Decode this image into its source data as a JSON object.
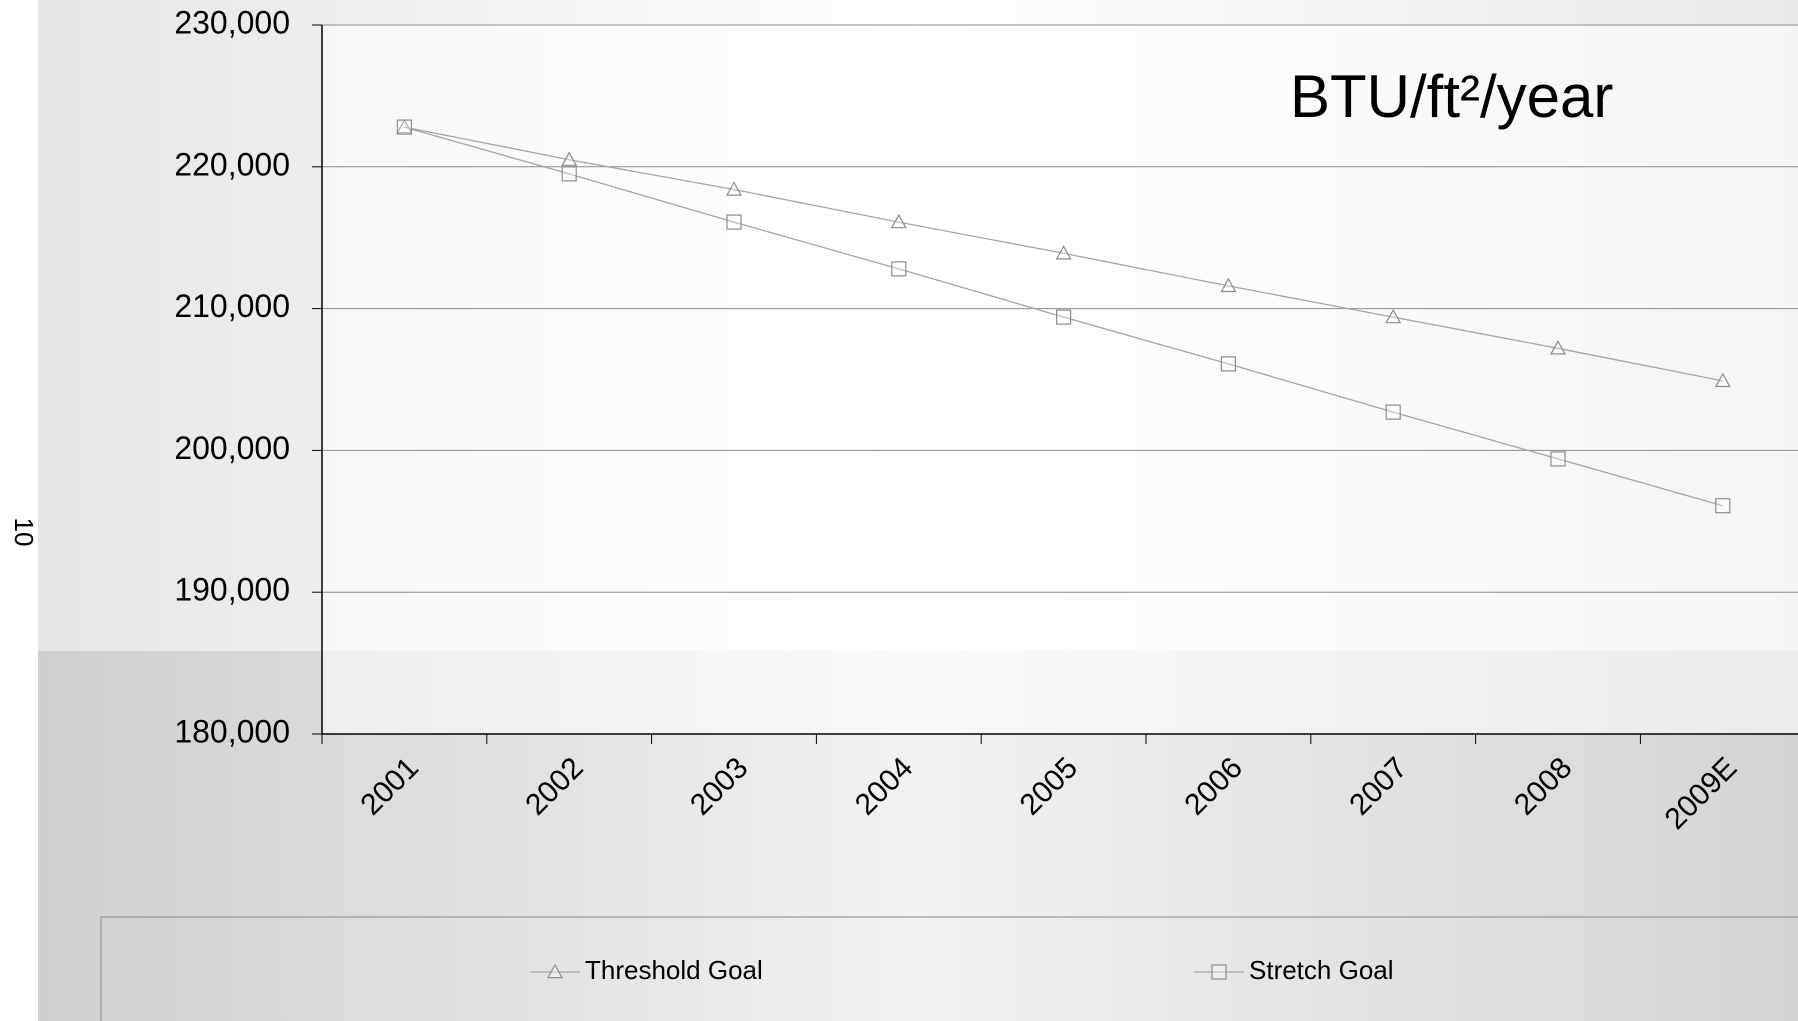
{
  "page_number": "10",
  "chart_data": {
    "type": "line",
    "title": "BTU/ft²/year",
    "categories": [
      "2001",
      "2002",
      "2003",
      "2004",
      "2005",
      "2006",
      "2007",
      "2008",
      "2009E"
    ],
    "series": [
      {
        "name": "Threshold Goal",
        "color": "#a6a6a6",
        "marker": "triangle",
        "values": [
          222800,
          220500,
          218400,
          216100,
          213900,
          211600,
          209400,
          207200,
          204900
        ]
      },
      {
        "name": "Stretch Goal",
        "color": "#a6a6a6",
        "marker": "square",
        "values": [
          222800,
          219500,
          216100,
          212800,
          209400,
          206100,
          202700,
          199400,
          196100
        ]
      }
    ],
    "ylim": [
      180000,
      230000
    ],
    "yticks": [
      {
        "value": 180000,
        "label": "180,000"
      },
      {
        "value": 190000,
        "label": "190,000"
      },
      {
        "value": 200000,
        "label": "200,000"
      },
      {
        "value": 210000,
        "label": "210,000"
      },
      {
        "value": 220000,
        "label": "220,000"
      },
      {
        "value": 230000,
        "label": "230,000"
      }
    ],
    "grid": true,
    "legend": "bottom"
  }
}
